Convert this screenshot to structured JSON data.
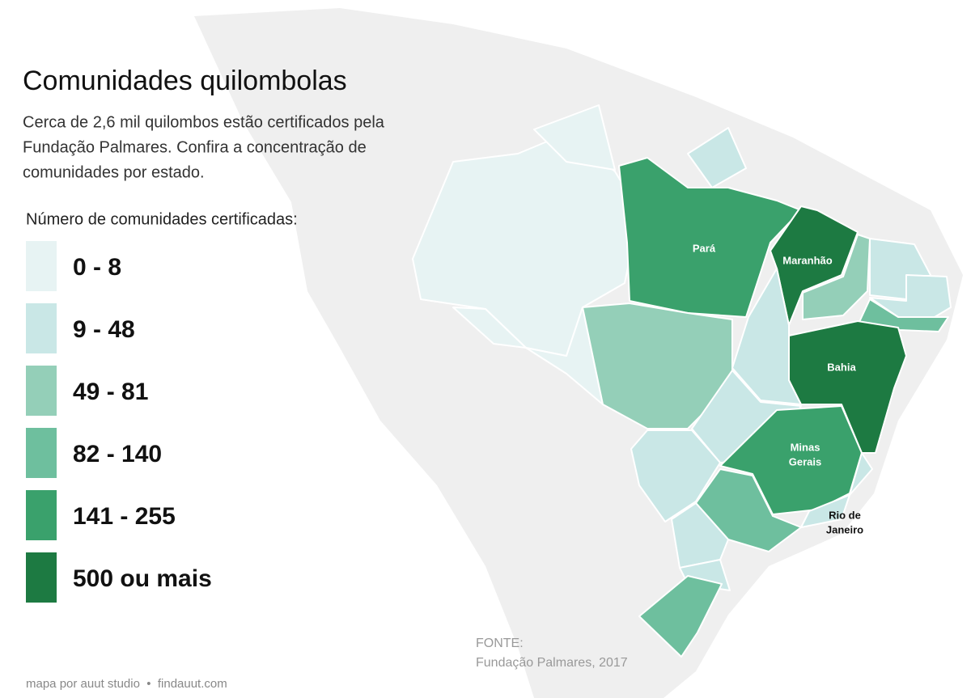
{
  "title": "Comunidades quilombolas",
  "subtitle_lines": [
    "Cerca de 2,6 mil quilombos estão certificados pela",
    "Fundação Palmares. Confira a concentração de",
    "comunidades por estado."
  ],
  "legend": {
    "title": "Número de comunidades certificadas:",
    "items": [
      {
        "label": "0 - 8",
        "color": "#e7f3f3"
      },
      {
        "label": "9 - 48",
        "color": "#c9e7e6"
      },
      {
        "label": "49 - 81",
        "color": "#94cfb8"
      },
      {
        "label": "82 - 140",
        "color": "#6ebf9e"
      },
      {
        "label": "141 - 255",
        "color": "#3aa16c"
      },
      {
        "label": "500 ou mais",
        "color": "#1d7a42"
      }
    ]
  },
  "map_labels": [
    {
      "lines": [
        "Pará"
      ]
    },
    {
      "lines": [
        "Maranhão"
      ]
    },
    {
      "lines": [
        "Bahia"
      ]
    },
    {
      "lines": [
        "Minas",
        "Gerais"
      ]
    },
    {
      "lines": [
        "Rio de",
        "Janeiro"
      ]
    }
  ],
  "source": {
    "label": "FONTE:",
    "text": "Fundação Palmares, 2017"
  },
  "credit": "mapa por auut studio  •  findauut.com"
}
